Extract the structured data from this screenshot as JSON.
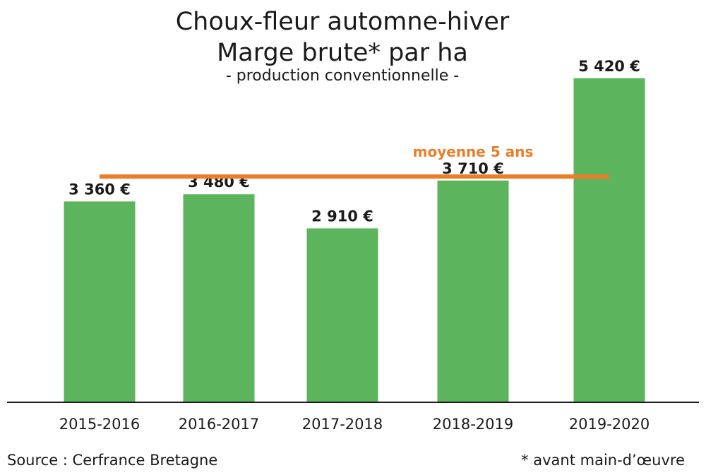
{
  "chart_data": {
    "type": "bar",
    "title_line1": "Choux-fleur automne-hiver",
    "title_line2": "Marge brute* par ha",
    "subtitle": "- production conventionnelle -",
    "categories": [
      "2015-2016",
      "2016-2017",
      "2017-2018",
      "2018-2019",
      "2019-2020"
    ],
    "values": [
      3360,
      3480,
      2910,
      3710,
      5420
    ],
    "value_labels": [
      "3 360 €",
      "3 480 €",
      "2 910 €",
      "3 710 €",
      "5 420 €"
    ],
    "average": {
      "label": "moyenne 5 ans",
      "value": 3776
    },
    "ylim": [
      0,
      5800
    ],
    "grid": false,
    "colors": {
      "bar": "#5cb45c",
      "average_line": "#ea7d28",
      "axis": "#1a1a1a"
    }
  },
  "footer": {
    "source": "Source : Cerfrance Bretagne",
    "note": "* avant main-d’œuvre"
  }
}
